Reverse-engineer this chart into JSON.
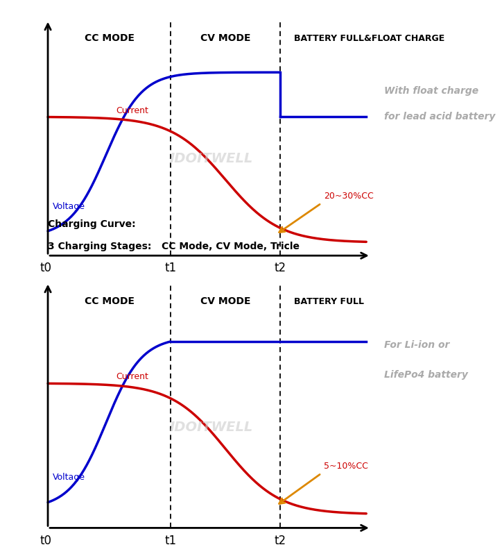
{
  "fig_width": 6.56,
  "fig_height": 7.94,
  "bg_color": "#ffffff",
  "chart1": {
    "cc_mode_label": "CC MODE",
    "cv_mode_label": "CV MODE",
    "battery_label": "BATTERY FULL&FLOAT CHARGE",
    "right_label_line1": "With float charge",
    "right_label_line2": "for lead acid battery",
    "current_label": "Current",
    "voltage_label": "Voltage",
    "percent_label": "20~30%CC",
    "watermark": "IDOITWELL",
    "t0_label": "t0",
    "t1_label": "t1",
    "t2_label": "t2",
    "voltage_color": "#0000cc",
    "current_color": "#cc0000",
    "right_text_color": "#aaaaaa",
    "percent_color": "#cc0000",
    "arrow_color": "#dd8800",
    "watermark_color": "#cccccc",
    "show_float_drop": true,
    "title_lines": []
  },
  "chart2": {
    "cc_mode_label": "CC MODE",
    "cv_mode_label": "CV MODE",
    "battery_label": "BATTERY FULL",
    "right_label_line1": "For Li-ion or",
    "right_label_line2": "LifePo4 battery",
    "current_label": "Current",
    "voltage_label": "Voltage",
    "percent_label": "5~10%CC",
    "watermark": "IDOITWELL",
    "t0_label": "t0",
    "t1_label": "t1",
    "t2_label": "t2",
    "voltage_color": "#0000cc",
    "current_color": "#cc0000",
    "right_text_color": "#aaaaaa",
    "percent_color": "#cc0000",
    "arrow_color": "#dd8800",
    "watermark_color": "#cccccc",
    "show_float_drop": false,
    "title_lines": [
      "Charging Curve:",
      "3 Charging Stages:   CC Mode, CV Mode, Tricle"
    ]
  }
}
